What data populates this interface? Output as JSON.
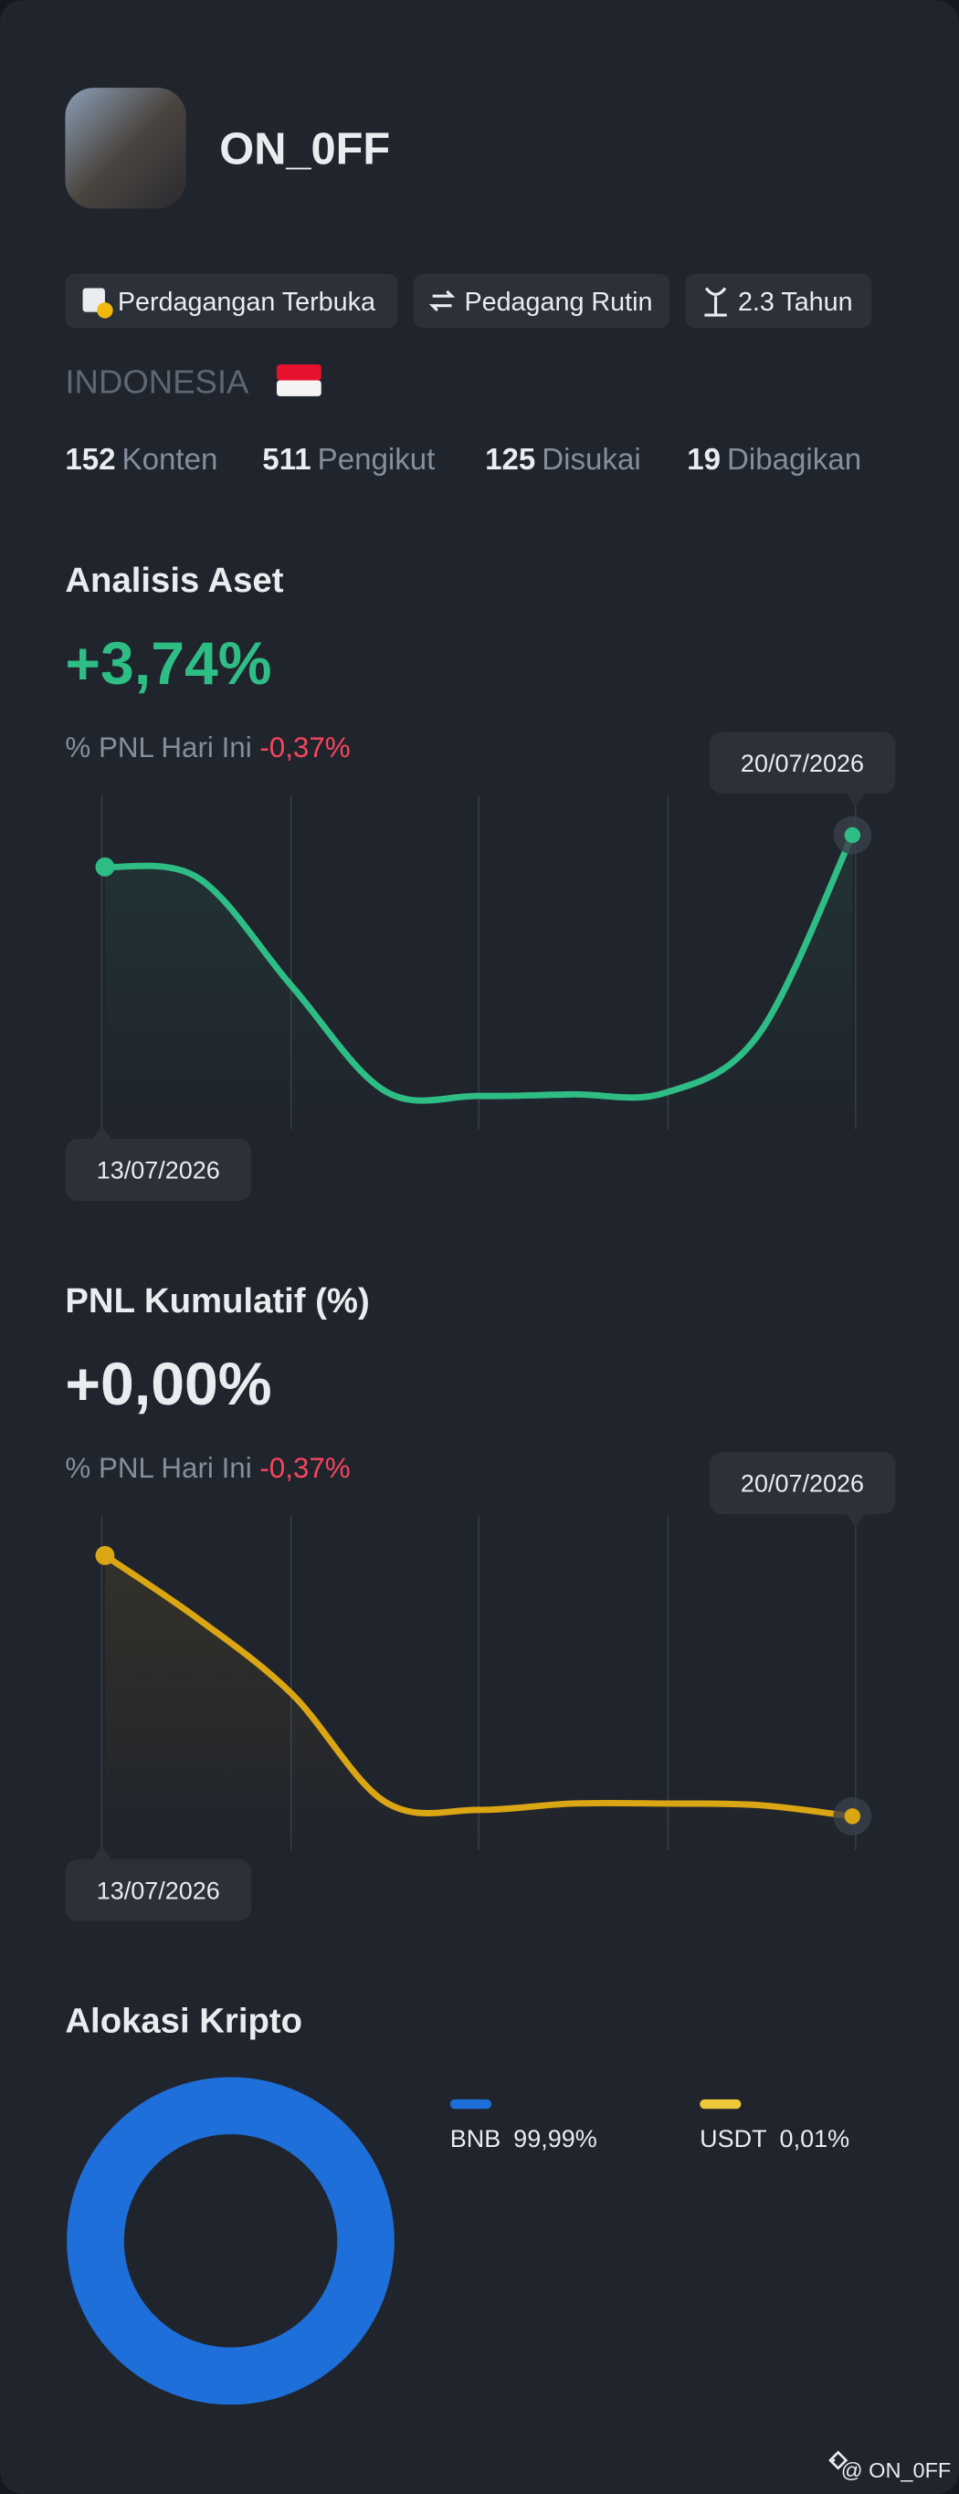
{
  "profile": {
    "name": "ON_0FF",
    "badges": [
      "Perdagangan Terbuka",
      "Pedagang Rutin",
      "2.3 Tahun"
    ],
    "country": "INDONESIA",
    "stats": [
      {
        "value": 152,
        "label": "Konten"
      },
      {
        "value": 511,
        "label": "Pengikut"
      },
      {
        "value": 125,
        "label": "Disukai"
      },
      {
        "value": 19,
        "label": "Dibagikan"
      }
    ]
  },
  "asset_analysis": {
    "title": "Analisis Aset",
    "value": "+3,74%",
    "pnl_label": "% PNL Hari Ini",
    "pnl_value": "-0,37%",
    "start_date": "13/07/2026",
    "end_date": "20/07/2026",
    "color": "#2ebd85",
    "values": [
      165,
      158,
      90,
      24,
      21,
      22,
      23,
      60,
      185
    ]
  },
  "cumulative_pnl": {
    "title": "PNL Kumulatif (%)",
    "value": "+0,00%",
    "pnl_label": "% PNL Hari Ini",
    "pnl_value": "-0,37%",
    "start_date": "13/07/2026",
    "end_date": "20/07/2026",
    "color": "#dba614",
    "values": [
      182,
      142,
      95,
      27,
      22,
      26,
      26,
      25,
      18
    ]
  },
  "allocation": {
    "title": "Alokasi Kripto",
    "items": [
      {
        "name": "BNB",
        "value": 99.99,
        "label": "99,99%",
        "color": "#1e6fd9"
      },
      {
        "name": "USDT",
        "value": 0.01,
        "label": "0,01%",
        "color": "#f0c93a"
      }
    ]
  },
  "footer": "@ ON_0FF"
}
